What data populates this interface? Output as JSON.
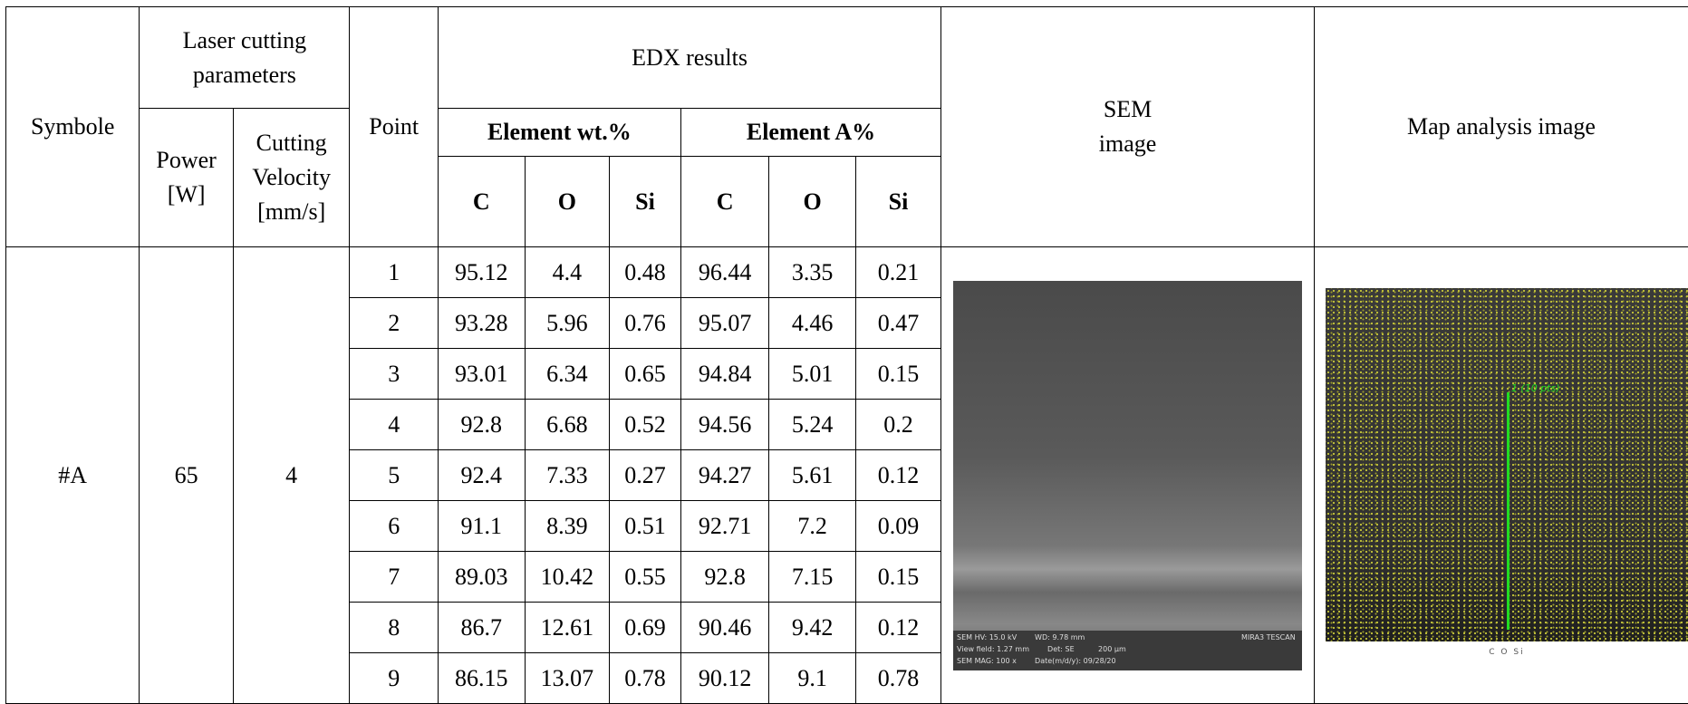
{
  "table": {
    "header": {
      "symbol": "Symbole",
      "laser_group": "Laser cutting parameters",
      "power": "Power [W]",
      "velocity": "Cutting Velocity [mm/s]",
      "point": "Point",
      "edx": "EDX results",
      "wt": "Element wt.%",
      "at": "Element A%",
      "elements": [
        "C",
        "O",
        "Si",
        "C",
        "O",
        "Si"
      ],
      "sem": "SEM image",
      "map": "Map analysis image"
    },
    "sample": {
      "symbol": "#A",
      "power": "65",
      "velocity": "4"
    },
    "rows": [
      [
        1,
        95.12,
        4.4,
        0.48,
        96.44,
        3.35,
        0.21
      ],
      [
        2,
        93.28,
        5.96,
        0.76,
        95.07,
        4.46,
        0.47
      ],
      [
        3,
        93.01,
        6.34,
        0.65,
        94.84,
        5.01,
        0.15
      ],
      [
        4,
        92.8,
        6.68,
        0.52,
        94.56,
        5.24,
        0.2
      ],
      [
        5,
        92.4,
        7.33,
        0.27,
        94.27,
        5.61,
        0.12
      ],
      [
        6,
        91.1,
        8.39,
        0.51,
        92.71,
        7.2,
        0.09
      ],
      [
        7,
        89.03,
        10.42,
        0.55,
        92.8,
        7.15,
        0.15
      ],
      [
        8,
        86.7,
        12.61,
        0.69,
        90.46,
        9.42,
        0.12
      ],
      [
        9,
        86.15,
        13.07,
        0.78,
        90.12,
        9.1,
        0.78
      ]
    ]
  },
  "sem_overlay": [
    "SEM HV: 15.0 kV",
    "WD: 9.78 mm",
    "MIRA3 TESCAN",
    "View field: 1.27 mm",
    "Det: SE",
    "200 µm",
    "SEM MAG: 100 x",
    "Date(m/d/y): 09/28/20"
  ],
  "map_overlay": {
    "tag": "1 (10 pts)",
    "legend": "C O Si"
  }
}
